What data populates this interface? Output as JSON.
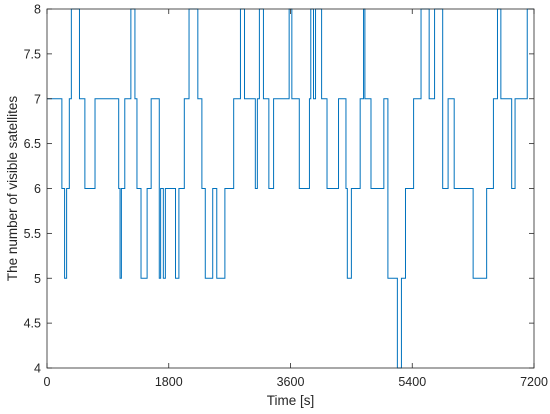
{
  "chart_data": {
    "type": "line",
    "title": "",
    "xlabel": "Time [s]",
    "ylabel": "The number of visible satellites",
    "xlim": [
      0,
      7200
    ],
    "ylim": [
      4,
      8
    ],
    "xticks": [
      0,
      1800,
      3600,
      5400,
      7200
    ],
    "xtick_labels": [
      "0",
      "1800",
      "3600",
      "5400",
      "7200"
    ],
    "yticks": [
      4,
      4.5,
      5,
      5.5,
      6,
      6.5,
      7,
      7.5,
      8
    ],
    "ytick_labels": [
      "4",
      "4.5",
      "5",
      "5.5",
      "6",
      "6.5",
      "7",
      "7.5",
      "8"
    ],
    "grid": false,
    "legend": "none",
    "line_color": "#0072BD",
    "step": true,
    "x": [
      0,
      220,
      260,
      290,
      330,
      360,
      480,
      560,
      710,
      1060,
      1080,
      1100,
      1150,
      1240,
      1300,
      1330,
      1390,
      1480,
      1540,
      1660,
      1680,
      1720,
      1750,
      1900,
      1950,
      2030,
      2100,
      2230,
      2290,
      2340,
      2450,
      2510,
      2630,
      2760,
      2860,
      2920,
      3080,
      3110,
      3140,
      3200,
      3280,
      3350,
      3580,
      3620,
      3730,
      3880,
      3900,
      3940,
      3970,
      4060,
      4140,
      4310,
      4420,
      4440,
      4500,
      4630,
      4680,
      4700,
      4790,
      4980,
      5040,
      5180,
      5240,
      5300,
      5420,
      5530,
      5650,
      5730,
      5850,
      5930,
      6020,
      6300,
      6500,
      6600,
      6660,
      6710,
      6870,
      6920,
      7100,
      7200
    ],
    "y": [
      7,
      6,
      5,
      6,
      7,
      8,
      7,
      6,
      7,
      6,
      5,
      6,
      7,
      8,
      7,
      6,
      5,
      6,
      7,
      5,
      6,
      5,
      6,
      5,
      6,
      7,
      8,
      7,
      6,
      5,
      6,
      5,
      6,
      7,
      8,
      7,
      6,
      7,
      8,
      7,
      6,
      7,
      8,
      7,
      6,
      7,
      8,
      7,
      8,
      7,
      6,
      7,
      6,
      5,
      6,
      7,
      8,
      7,
      6,
      7,
      5,
      4,
      5,
      6,
      7,
      8,
      7,
      8,
      6,
      7,
      6,
      5,
      6,
      7,
      8,
      7,
      6,
      7,
      8,
      8
    ]
  }
}
